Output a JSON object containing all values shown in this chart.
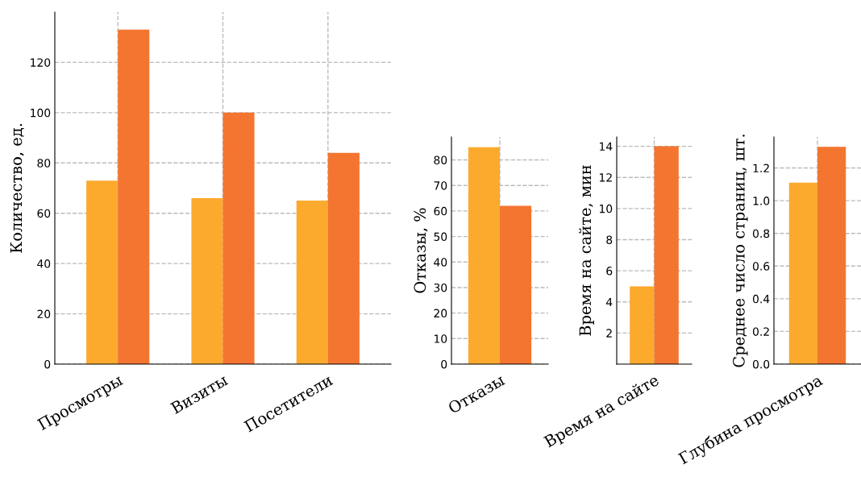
{
  "chart_data": [
    {
      "type": "bar",
      "ylabel": "Количество, ед.",
      "categories": [
        "Просмотры",
        "Визиты",
        "Посетители"
      ],
      "series": [
        {
          "color": "#fbaa2e",
          "values": [
            73,
            66,
            65
          ]
        },
        {
          "color": "#f47530",
          "values": [
            133,
            100,
            84
          ]
        }
      ],
      "ylim": [
        0,
        140
      ],
      "yticks": [
        0,
        20,
        40,
        60,
        80,
        100,
        120
      ],
      "grid": true
    },
    {
      "type": "bar",
      "ylabel": "Отказы, %",
      "categories": [
        "Отказы"
      ],
      "series": [
        {
          "color": "#fbaa2e",
          "values": [
            85
          ]
        },
        {
          "color": "#f47530",
          "values": [
            62
          ]
        }
      ],
      "ylim": [
        0,
        89
      ],
      "yticks": [
        0,
        10,
        20,
        30,
        40,
        50,
        60,
        70,
        80
      ],
      "grid": true
    },
    {
      "type": "bar",
      "ylabel": "Время на сайте, мин",
      "categories": [
        "Время на сайте"
      ],
      "series": [
        {
          "color": "#fbaa2e",
          "values": [
            5
          ]
        },
        {
          "color": "#f47530",
          "values": [
            14
          ]
        }
      ],
      "ylim": [
        0,
        14.6
      ],
      "yticks": [
        2,
        4,
        6,
        8,
        10,
        12,
        14
      ],
      "grid": true
    },
    {
      "type": "bar",
      "ylabel": "Среднее число страниц, шт.",
      "categories": [
        "Глубина просмотра"
      ],
      "series": [
        {
          "color": "#fbaa2e",
          "values": [
            1.11
          ]
        },
        {
          "color": "#f47530",
          "values": [
            1.33
          ]
        }
      ],
      "ylim": [
        0,
        1.39
      ],
      "yticks": [
        {
          "value": 0,
          "label": "0.0"
        },
        {
          "value": 0.2,
          "label": "0.2"
        },
        {
          "value": 0.4,
          "label": "0.4"
        },
        {
          "value": 0.6,
          "label": "0.6"
        },
        {
          "value": 0.8,
          "label": "0.8"
        },
        {
          "value": 1.0,
          "label": "1.0"
        },
        {
          "value": 1.2,
          "label": "1.2"
        }
      ],
      "grid": true
    }
  ]
}
